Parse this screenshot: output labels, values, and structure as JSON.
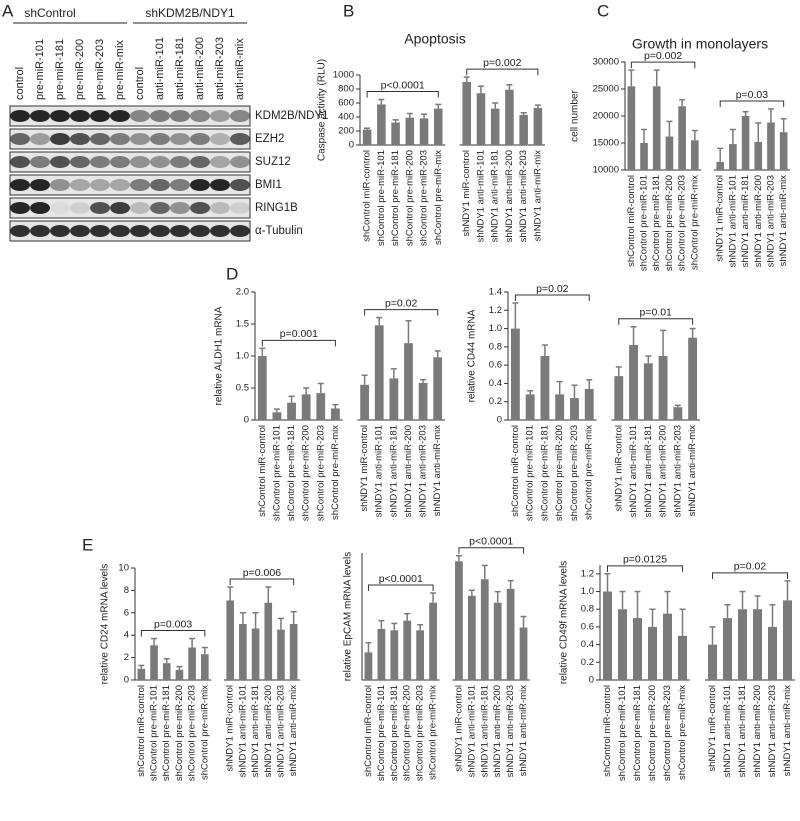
{
  "blot": {
    "panel": "A",
    "groups": [
      "shControl",
      "shKDM2B/NDY1"
    ],
    "lanes": [
      "control",
      "pre-miR-101",
      "pre-miR-181",
      "pre-miR-200",
      "pre-miR-203",
      "pre-miR-mix",
      "control",
      "anti-miR-101",
      "anti-miR-181",
      "anti-miR-200",
      "anti-miR-203",
      "anti-miR-mix"
    ],
    "rows": [
      "KDM2B/NDY1",
      "EZH2",
      "SUZ12",
      "BMI1",
      "RING1B",
      "α-Tubulin"
    ]
  },
  "chart_data": [
    {
      "type": "bar",
      "panel": "B",
      "title": "Apoptosis",
      "y_label": "Caspase activity (RLU)",
      "color": "#7a7a7a",
      "categories": [
        "shControl miR-control",
        "shControl pre-miR-101",
        "shControl pre-miR-181",
        "shControl pre-miR-200",
        "shControl pre-miR-203",
        "shControl pre-miR-mix",
        "shNDY1 miR-control",
        "shNDY1 anti-miR-101",
        "shNDY1 anti-miR-181",
        "shNDY1 anti-miR-200",
        "shNDY1 anti-miR-203",
        "shNDY1 anti-miR-mix"
      ],
      "values": [
        220,
        580,
        320,
        390,
        380,
        520,
        900,
        740,
        520,
        790,
        430,
        530
      ],
      "errors": [
        20,
        70,
        40,
        60,
        60,
        60,
        70,
        100,
        80,
        70,
        30,
        40
      ],
      "ylim": [
        0,
        1000
      ],
      "yticks": [
        0,
        200,
        400,
        600,
        800,
        1000
      ],
      "annotations": [
        "p<0.0001",
        "p=0.002"
      ]
    },
    {
      "type": "bar",
      "panel": "C",
      "title": "Growth in monolayers",
      "y_label": "cell number",
      "color": "#7a7a7a",
      "categories": [
        "shControl miR-control",
        "shControl pre-miR-101",
        "shControl pre-miR-181",
        "shControl pre-miR-200",
        "shControl pre-miR-203",
        "shControl pre-miR-mix",
        "shNDY1 miR-control",
        "shNDY1 anti-miR-101",
        "shNDY1 anti-miR-181",
        "shNDY1 anti-miR-200",
        "shNDY1 anti-miR-203",
        "shNDY1 anti-miR-mix"
      ],
      "values": [
        25500,
        15000,
        25500,
        16200,
        21800,
        15500,
        11500,
        14800,
        20000,
        15200,
        18800,
        17000
      ],
      "errors": [
        3000,
        2500,
        3000,
        2800,
        1200,
        1800,
        2500,
        2700,
        800,
        3500,
        2500,
        2500
      ],
      "ylim": [
        10000,
        30000
      ],
      "yticks": [
        10000,
        15000,
        20000,
        25000,
        30000
      ],
      "annotations": [
        "p=0.002",
        "p=0.03"
      ]
    },
    {
      "type": "bar",
      "panel": "D",
      "y_label": "relative ALDH1 mRNA",
      "color": "#7a7a7a",
      "categories": [
        "shControl miR-control",
        "shControl pre-miR-101",
        "shControl pre-miR-181",
        "shControl pre-miR-200",
        "shControl pre-miR-203",
        "shControl pre-miR-mix",
        "shNDY1 miR-control",
        "shNDY1 anti-miR-101",
        "shNDY1 anti-miR-181",
        "shNDY1 anti-miR-200",
        "shNDY1 anti-miR-203",
        "shNDY1 anti-miR-mix"
      ],
      "values": [
        1.0,
        0.12,
        0.27,
        0.4,
        0.42,
        0.18,
        0.55,
        1.48,
        0.65,
        1.2,
        0.58,
        0.98
      ],
      "errors": [
        0.12,
        0.05,
        0.1,
        0.1,
        0.15,
        0.06,
        0.15,
        0.12,
        0.15,
        0.35,
        0.05,
        0.1
      ],
      "ylim": [
        0,
        2
      ],
      "yticks": [
        0,
        0.5,
        {
          "value": 1,
          "label": "1.0"
        },
        1.5,
        {
          "value": 2,
          "label": "2.0"
        }
      ],
      "annotations": [
        "p=0.001",
        "p=0.02"
      ]
    },
    {
      "type": "bar",
      "y_label": "relative CD44 mRNA",
      "color": "#7a7a7a",
      "categories": [
        "shControl miR-control",
        "shControl pre-miR-101",
        "shControl pre-miR-181",
        "shControl pre-miR-200",
        "shControl pre-miR-203",
        "shControl pre-miR-mix",
        "shNDY1 miR-control",
        "shNDY1 anti-miR-101",
        "shNDY1 anti-miR-181",
        "shNDY1 anti-miR-200",
        "shNDY1 anti-miR-203",
        "shNDY1 anti-miR-mix"
      ],
      "values": [
        1.0,
        0.28,
        0.7,
        0.28,
        0.24,
        0.34,
        0.48,
        0.82,
        0.62,
        0.7,
        0.14,
        0.9
      ],
      "errors": [
        0.28,
        0.04,
        0.12,
        0.14,
        0.14,
        0.1,
        0.1,
        0.2,
        0.08,
        0.28,
        0.02,
        0.1
      ],
      "ylim": [
        0,
        1.4
      ],
      "yticks": [
        0,
        0.2,
        0.4,
        0.6,
        0.8,
        {
          "value": 1,
          "label": "1.0"
        },
        1.2,
        1.4
      ],
      "annotations": [
        "p=0.02",
        "p=0.01"
      ]
    },
    {
      "type": "bar",
      "panel": "E",
      "y_label": "relative CD24 mRNA levels",
      "color": "#7a7a7a",
      "categories": [
        "shControl miR-control",
        "shControl pre-miR-101",
        "shControl pre-miR-181",
        "shControl pre-miR-200",
        "shControl pre-miR-203",
        "shControl pre-miR-mix",
        "shNDY1 miR-control",
        "shNDY1 anti-miR-101",
        "shNDY1 anti-miR-181",
        "shNDY1 anti-miR-200",
        "shNDY1 anti-miR-203",
        "shNDY1 anti-miR-mix"
      ],
      "values": [
        1.0,
        3.1,
        1.5,
        0.9,
        2.9,
        2.3,
        7.1,
        5.0,
        4.6,
        6.9,
        4.5,
        5.0
      ],
      "errors": [
        0.3,
        0.6,
        0.4,
        0.3,
        0.8,
        0.6,
        1.2,
        1.0,
        1.4,
        1.4,
        1.0,
        1.1
      ],
      "ylim": [
        0,
        10
      ],
      "yticks": [
        0,
        2,
        4,
        6,
        8,
        10
      ],
      "annotations": [
        "p=0.003",
        "p=0.006"
      ]
    },
    {
      "type": "bar",
      "y_label": "relative EpCAM mRNA levels",
      "color": "#7a7a7a",
      "categories": [
        "shControl miR-control",
        "shControl pre-miR-101",
        "shControl pre-miR-181",
        "shControl pre-miR-200",
        "shControl pre-miR-203",
        "shControl pre-miR-mix",
        "shNDY1 miR-control",
        "shNDY1 anti-miR-101",
        "shNDY1 anti-miR-181",
        "shNDY1 anti-miR-200",
        "shNDY1 anti-miR-203",
        "shNDY1 anti-miR-mix"
      ],
      "values": [
        1.0,
        1.85,
        1.8,
        2.15,
        1.8,
        2.8,
        4.3,
        3.05,
        3.65,
        2.8,
        3.3,
        1.9
      ],
      "errors": [
        0.35,
        0.3,
        0.25,
        0.25,
        0.2,
        0.35,
        0.2,
        0.2,
        0.5,
        0.4,
        0.3,
        0.4
      ],
      "ylim": [
        0,
        4.6
      ],
      "annotations": [
        "p<0.0001",
        "p<0.0001"
      ]
    },
    {
      "type": "bar",
      "y_label": "relative CD49f mRNA levels",
      "color": "#7a7a7a",
      "categories": [
        "shControl miR-control",
        "shControl pre-miR-101",
        "shControl pre-miR-181",
        "shControl pre-miR-200",
        "shControl pre-miR-203",
        "shControl pre-miR-mix",
        "shNDY1 miR-control",
        "shNDY1 anti-miR-101",
        "shNDY1 anti-miR-181",
        "shNDY1 anti-miR-200",
        "shNDY1 anti-miR-203",
        "shNDY1 anti-miR-mix"
      ],
      "values": [
        1.0,
        0.8,
        0.7,
        0.6,
        0.75,
        0.5,
        0.4,
        0.7,
        0.8,
        0.8,
        0.6,
        0.9
      ],
      "errors": [
        0.2,
        0.2,
        0.3,
        0.2,
        0.25,
        0.3,
        0.2,
        0.15,
        0.2,
        0.15,
        0.25,
        0.22
      ],
      "ylim": [
        0,
        1.3
      ],
      "yticks": [
        0,
        0.2,
        0.4,
        0.6,
        0.8,
        {
          "value": 1,
          "label": "1.0"
        },
        1.2
      ],
      "annotations": [
        "p=0.0125",
        "p=0.02"
      ]
    }
  ]
}
